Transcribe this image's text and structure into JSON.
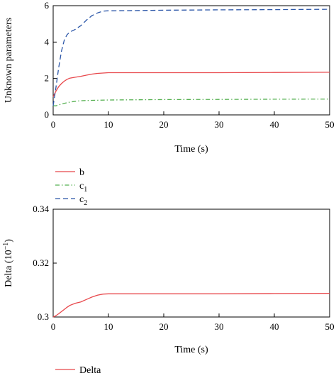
{
  "chart_data": [
    {
      "type": "line",
      "xlabel": "Time (s)",
      "ylabel": "Unknown parameters",
      "xlim": [
        0,
        50
      ],
      "ylim": [
        0,
        6
      ],
      "xticks": [
        "0",
        "10",
        "20",
        "30",
        "40",
        "50"
      ],
      "yticks": [
        "0",
        "2",
        "4",
        "6"
      ],
      "grid": false,
      "legend_position": "below",
      "series": [
        {
          "name": "b",
          "sub": "",
          "color": "#e8474b",
          "dash": "solid",
          "x": [
            0,
            0.5,
            1,
            1.5,
            2,
            2.5,
            3,
            4,
            5,
            6,
            7,
            8,
            9,
            10,
            15,
            20,
            30,
            40,
            50
          ],
          "y": [
            1.0,
            1.3,
            1.55,
            1.72,
            1.85,
            1.95,
            2.02,
            2.07,
            2.12,
            2.18,
            2.24,
            2.28,
            2.3,
            2.32,
            2.32,
            2.32,
            2.32,
            2.33,
            2.34
          ]
        },
        {
          "name": "c",
          "sub": "1",
          "color": "#55b050",
          "dash": "6,3,1.5,3",
          "x": [
            0,
            0.5,
            1,
            2,
            3,
            4,
            5,
            7,
            10,
            15,
            20,
            30,
            40,
            50
          ],
          "y": [
            0.5,
            0.5,
            0.55,
            0.63,
            0.7,
            0.75,
            0.78,
            0.8,
            0.82,
            0.83,
            0.84,
            0.85,
            0.86,
            0.87
          ]
        },
        {
          "name": "c",
          "sub": "2",
          "color": "#2b56a8",
          "dash": "7,4",
          "x": [
            0,
            0.5,
            1,
            1.5,
            2,
            2.5,
            3,
            4,
            5,
            6,
            7,
            8,
            9,
            10,
            15,
            20,
            30,
            40,
            50
          ],
          "y": [
            0.5,
            1.5,
            2.6,
            3.5,
            4.1,
            4.4,
            4.55,
            4.7,
            4.9,
            5.2,
            5.45,
            5.6,
            5.7,
            5.72,
            5.73,
            5.75,
            5.77,
            5.78,
            5.8
          ]
        }
      ]
    },
    {
      "type": "line",
      "xlabel": "Time (s)",
      "ylabel": "Delta (10",
      "ylabel_sup": "−1",
      "ylabel_end": ")",
      "xlim": [
        0,
        50
      ],
      "ylim": [
        0.3,
        0.34
      ],
      "xticks": [
        "0",
        "10",
        "20",
        "30",
        "40",
        "50"
      ],
      "yticks": [
        "0.3",
        "0.32",
        "0.34"
      ],
      "grid": false,
      "legend_position": "below",
      "series": [
        {
          "name": "Delta",
          "sub": "",
          "color": "#e8474b",
          "dash": "solid",
          "x": [
            0,
            0.5,
            1,
            1.5,
            2,
            2.5,
            3,
            4,
            5,
            6,
            7,
            8,
            9,
            10,
            15,
            20,
            30,
            40,
            50
          ],
          "y": [
            0.3,
            0.3005,
            0.3012,
            0.302,
            0.3028,
            0.3036,
            0.3043,
            0.3051,
            0.3056,
            0.3065,
            0.3074,
            0.3081,
            0.3085,
            0.3086,
            0.3086,
            0.3086,
            0.3086,
            0.3087,
            0.3088
          ]
        }
      ]
    }
  ]
}
